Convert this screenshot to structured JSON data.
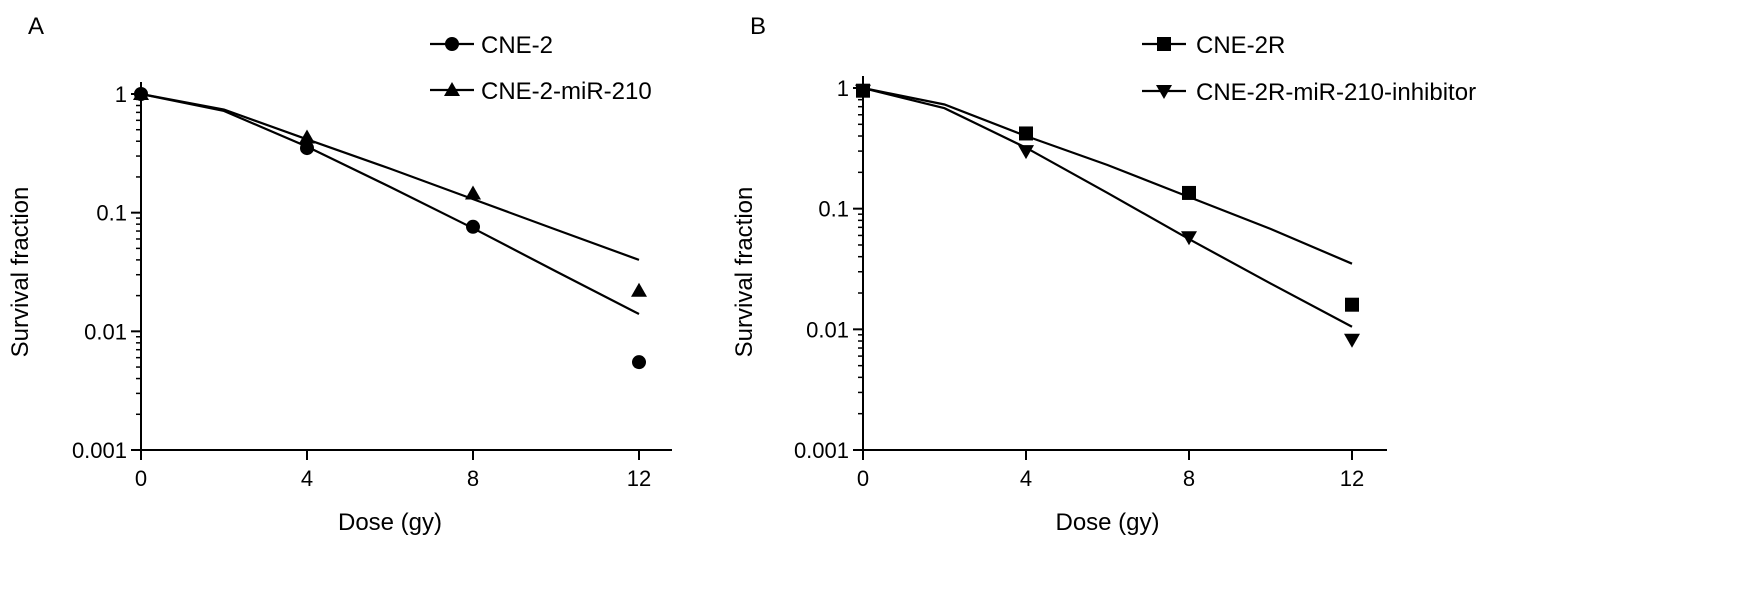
{
  "chart_data": [
    {
      "type": "scatter",
      "panel_label": "A",
      "xlabel": "Dose (gy)",
      "ylabel": "Survival fraction",
      "xlim": [
        0,
        12
      ],
      "ylim": [
        0.001,
        1
      ],
      "yscale": "log",
      "xticks": [
        "0",
        "4",
        "8",
        "12"
      ],
      "yticks": [
        "0.001",
        "0.01",
        "0.1",
        "1"
      ],
      "legend_position": "top-right",
      "series": [
        {
          "name": "CNE-2",
          "marker": "circle",
          "x": [
            0,
            4,
            8,
            12
          ],
          "y": [
            1.0,
            0.35,
            0.076,
            0.0055
          ],
          "fit_x": [
            0,
            2,
            4,
            6,
            8,
            10,
            12
          ],
          "fit_y": [
            1.0,
            0.72,
            0.36,
            0.165,
            0.074,
            0.032,
            0.014
          ]
        },
        {
          "name": "CNE-2-miR-210",
          "marker": "triangle-up",
          "x": [
            0,
            4,
            8,
            12
          ],
          "y": [
            1.0,
            0.43,
            0.145,
            0.022
          ],
          "fit_x": [
            0,
            2,
            4,
            6,
            8,
            10,
            12
          ],
          "fit_y": [
            1.0,
            0.74,
            0.415,
            0.235,
            0.13,
            0.072,
            0.04
          ]
        }
      ]
    },
    {
      "type": "scatter",
      "panel_label": "B",
      "xlabel": "Dose (gy)",
      "ylabel": "Survival fraction",
      "xlim": [
        0,
        12
      ],
      "ylim": [
        0.001,
        1
      ],
      "yscale": "log",
      "xticks": [
        "0",
        "4",
        "8",
        "12"
      ],
      "yticks": [
        "0.001",
        "0.01",
        "0.1",
        "1"
      ],
      "legend_position": "top-right",
      "series": [
        {
          "name": "CNE-2R",
          "marker": "square",
          "x": [
            0,
            4,
            8,
            12
          ],
          "y": [
            0.95,
            0.42,
            0.135,
            0.016
          ],
          "fit_x": [
            0,
            2,
            4,
            6,
            8,
            10,
            12
          ],
          "fit_y": [
            1.0,
            0.73,
            0.4,
            0.23,
            0.125,
            0.068,
            0.035
          ]
        },
        {
          "name": "CNE-2R-miR-210-inhibitor",
          "marker": "triangle-down",
          "x": [
            0,
            4,
            8,
            12
          ],
          "y": [
            0.95,
            0.3,
            0.058,
            0.0082
          ],
          "fit_x": [
            0,
            2,
            4,
            6,
            8,
            10,
            12
          ],
          "fit_y": [
            1.0,
            0.68,
            0.32,
            0.135,
            0.056,
            0.024,
            0.0105
          ]
        }
      ]
    }
  ]
}
